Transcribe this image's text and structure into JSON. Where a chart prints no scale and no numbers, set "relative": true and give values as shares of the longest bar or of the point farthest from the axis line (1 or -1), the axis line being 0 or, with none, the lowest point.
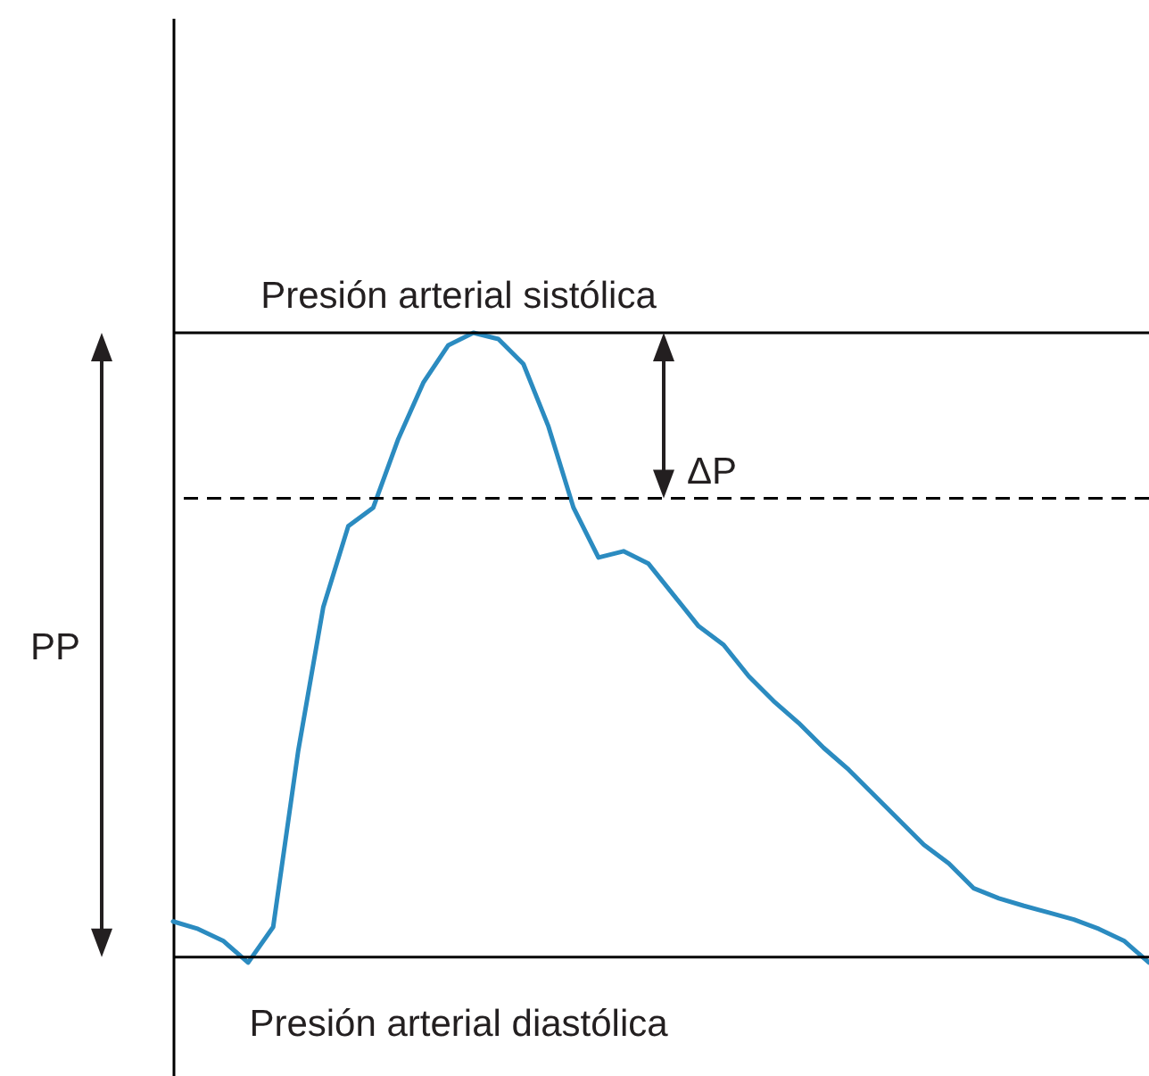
{
  "chart_data": {
    "type": "line",
    "relative": true,
    "categories": [
      null,
      null,
      null,
      null,
      null,
      null,
      null,
      null,
      null,
      null,
      null,
      null,
      null,
      null,
      null,
      null,
      null,
      null,
      null,
      null,
      null,
      null,
      null,
      null,
      null,
      null,
      null,
      null,
      null,
      null,
      null,
      null,
      null,
      null,
      null,
      null,
      null,
      null,
      null,
      null
    ],
    "series": [
      {
        "color": "#2b8bc0",
        "values": [
          0.057,
          0.045,
          0.026,
          -0.009,
          0.048,
          0.33,
          0.56,
          0.69,
          0.72,
          0.83,
          0.92,
          0.98,
          1.0,
          0.99,
          0.95,
          0.85,
          0.72,
          0.64,
          0.65,
          0.63,
          0.58,
          0.53,
          0.5,
          0.45,
          0.41,
          0.375,
          0.335,
          0.3,
          0.26,
          0.22,
          0.18,
          0.15,
          0.11,
          0.094,
          0.082,
          0.071,
          0.06,
          0.045,
          0.026,
          -0.009
        ]
      }
    ],
    "ref_lines": [
      {
        "axis": "y",
        "value": 1,
        "label": "Presión arterial sistólica",
        "color": "#000000",
        "line_style": "solid"
      },
      {
        "axis": "y",
        "value": 0,
        "label": "Presión arterial diastólica",
        "color": "#000000",
        "line_style": "solid"
      },
      {
        "axis": "y",
        "value": 0.735,
        "label": null,
        "color": "#000000",
        "line_style": "dashed"
      }
    ],
    "annotations": [
      "PP",
      "ΔP"
    ]
  }
}
